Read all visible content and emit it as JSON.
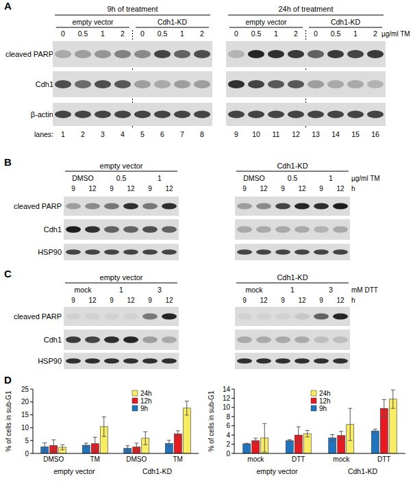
{
  "blots": [
    {
      "panel": "A",
      "header_groups": [
        {
          "label": "9h of treatment",
          "lanes": 8
        },
        {
          "label": "24h of treatment",
          "lanes": 8
        }
      ],
      "conditions": [
        {
          "label": "empty vector",
          "lanes": 4
        },
        {
          "label": "Cdh1-KD",
          "lanes": 4
        },
        {
          "label": "empty vector",
          "lanes": 4
        },
        {
          "label": "Cdh1-KD",
          "lanes": 4
        }
      ],
      "doses": [
        0,
        0.5,
        1,
        2,
        0,
        0.5,
        1,
        2,
        0,
        0.5,
        1,
        2,
        0,
        0.5,
        1,
        2
      ],
      "dose_unit": "µg/ml TM",
      "lane_label": "lanes:",
      "lane_numbers": [
        1,
        2,
        3,
        4,
        5,
        6,
        7,
        8,
        9,
        10,
        11,
        12,
        13,
        14,
        15,
        16
      ],
      "rows": [
        {
          "label": "cleaved PARP",
          "bands": [
            0.25,
            0.3,
            0.35,
            0.45,
            0.4,
            0.75,
            0.6,
            0.7,
            0.2,
            0.9,
            0.85,
            0.8,
            0.6,
            0.8,
            0.75,
            0.8
          ]
        },
        {
          "label": "Cdh1",
          "bands": [
            0.7,
            0.55,
            0.7,
            0.65,
            0.3,
            0.25,
            0.3,
            0.3,
            0.85,
            0.75,
            0.65,
            0.65,
            0.3,
            0.25,
            0.25,
            0.2
          ]
        },
        {
          "label": "β-actin",
          "bands": [
            0.75,
            0.75,
            0.75,
            0.75,
            0.75,
            0.75,
            0.75,
            0.75,
            0.75,
            0.75,
            0.75,
            0.75,
            0.75,
            0.75,
            0.75,
            0.75
          ]
        }
      ]
    },
    {
      "panel": "B",
      "conditions": [
        {
          "label": "empty vector",
          "lanes": 6
        },
        {
          "label": "Cdh1-KD",
          "lanes": 6
        }
      ],
      "treatments": [
        "DMSO",
        0.5,
        1
      ],
      "treatment_unit": "µg/ml TM",
      "times": [
        9,
        12
      ],
      "time_unit": "h",
      "rows": [
        {
          "label": "cleaved PARP",
          "bands": [
            0.3,
            0.4,
            0.5,
            0.85,
            0.5,
            0.85,
            0.3,
            0.4,
            0.75,
            0.9,
            0.85,
            0.95
          ]
        },
        {
          "label": "Cdh1",
          "bands": [
            0.95,
            0.85,
            0.6,
            0.6,
            0.7,
            0.6,
            0.25,
            0.25,
            0.25,
            0.25,
            0.2,
            0.25
          ]
        },
        {
          "label": "HSP90",
          "bands": [
            0.75,
            0.75,
            0.75,
            0.75,
            0.75,
            0.75,
            0.75,
            0.75,
            0.75,
            0.75,
            0.75,
            0.75
          ]
        }
      ]
    },
    {
      "panel": "C",
      "conditions": [
        {
          "label": "empty vector",
          "lanes": 6
        },
        {
          "label": "Cdh1-KD",
          "lanes": 6
        }
      ],
      "treatments": [
        "mock",
        1,
        3
      ],
      "treatment_unit": "mM DTT",
      "times": [
        9,
        12
      ],
      "time_unit": "h",
      "rows": [
        {
          "label": "cleaved PARP",
          "bands": [
            0.05,
            0.05,
            0.05,
            0.05,
            0.5,
            0.9,
            0.05,
            0.05,
            0.05,
            0.1,
            0.6,
            0.9
          ]
        },
        {
          "label": "Cdh1",
          "bands": [
            0.8,
            0.75,
            0.85,
            0.9,
            0.3,
            0.25,
            0.25,
            0.25,
            0.25,
            0.25,
            0.15,
            0.15
          ]
        },
        {
          "label": "HSP90",
          "bands": [
            0.85,
            0.85,
            0.85,
            0.85,
            0.85,
            0.85,
            0.85,
            0.85,
            0.85,
            0.85,
            0.85,
            0.85
          ]
        }
      ]
    }
  ],
  "chart_panel": "D",
  "chart_data": [
    {
      "type": "bar",
      "categories": [
        "DMSO",
        "TM",
        "DMSO",
        "TM"
      ],
      "category_groups": [
        "empty vector",
        "Cdh1-KD"
      ],
      "y_label": "% of cells in sub-G1",
      "ylim": [
        0,
        25
      ],
      "yticks": [
        0,
        5,
        10,
        15,
        20,
        25
      ],
      "legend": "top",
      "series": [
        {
          "name": "9h",
          "color": "#1f74c0",
          "values": [
            2.6,
            3.2,
            2.0,
            3.9
          ],
          "errors": [
            1.5,
            0.8,
            1.0,
            1.2
          ]
        },
        {
          "name": "12h",
          "color": "#e8191f",
          "values": [
            3.1,
            3.8,
            2.5,
            7.6
          ],
          "errors": [
            2.2,
            2.5,
            1.5,
            1.2
          ]
        },
        {
          "name": "24h",
          "color": "#f8ec62",
          "values": [
            2.4,
            10.4,
            5.9,
            17.6
          ],
          "errors": [
            1.0,
            3.8,
            2.5,
            2.7
          ]
        }
      ]
    },
    {
      "type": "bar",
      "categories": [
        "mock",
        "DTT",
        "mock",
        "DTT"
      ],
      "category_groups": [
        "empty vector",
        "Cdh1-KD"
      ],
      "y_label": "% of cells in sub-G1",
      "ylim": [
        0,
        14
      ],
      "yticks": [
        0,
        2,
        4,
        6,
        8,
        10,
        12,
        14
      ],
      "legend": "top",
      "series": [
        {
          "name": "9h",
          "color": "#1f74c0",
          "values": [
            2.1,
            2.8,
            3.4,
            4.9
          ],
          "errors": [
            0.1,
            0.2,
            0.7,
            0.4
          ]
        },
        {
          "name": "12h",
          "color": "#e8191f",
          "values": [
            2.8,
            4.0,
            3.9,
            9.8
          ],
          "errors": [
            0.5,
            1.8,
            0.9,
            1.9
          ]
        },
        {
          "name": "24h",
          "color": "#f8ec62",
          "values": [
            3.4,
            4.3,
            6.3,
            11.8
          ],
          "errors": [
            3.1,
            0.7,
            3.5,
            2.0
          ]
        }
      ]
    }
  ]
}
